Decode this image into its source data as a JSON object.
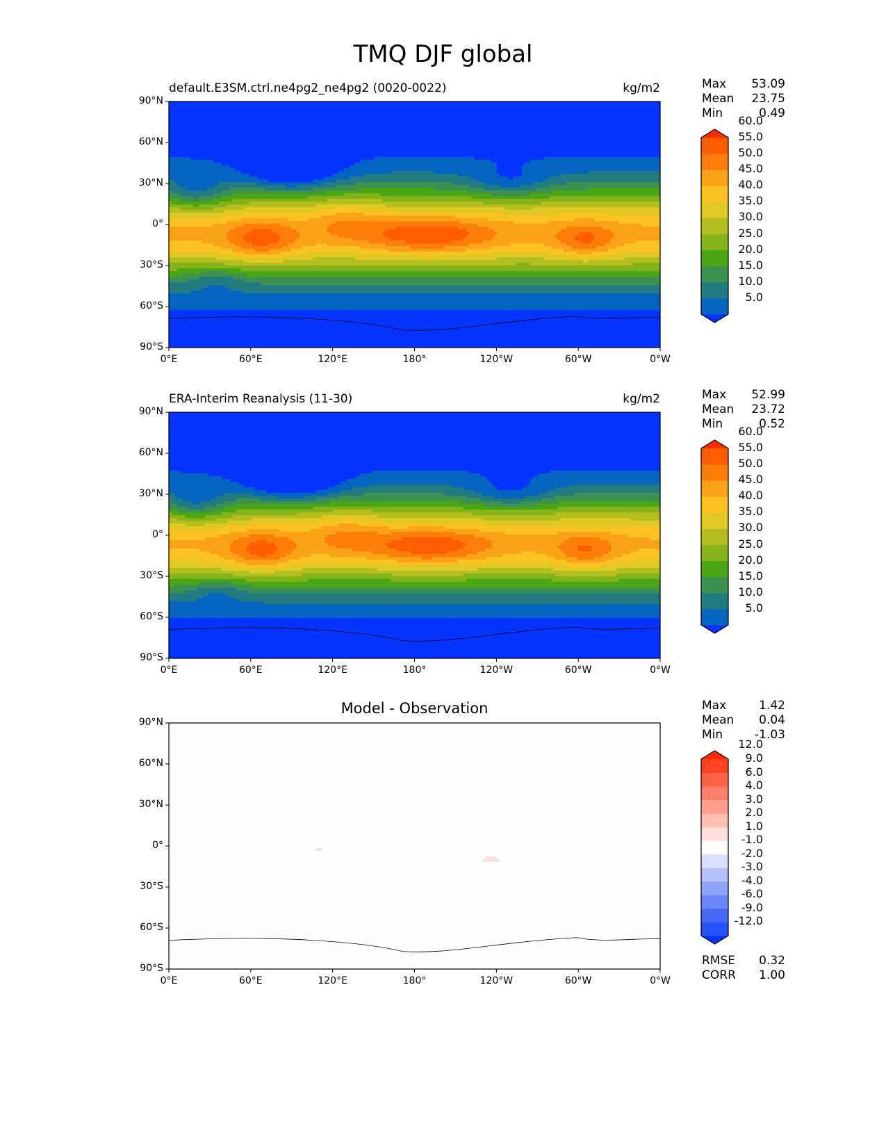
{
  "figure_title": "TMQ DJF global",
  "panels": [
    {
      "left_title": "default.E3SM.ctrl.ne4pg2_ne4pg2 (0020-0022)",
      "right_title": "kg/m2",
      "center_title": "",
      "stats": [
        {
          "label": "Max",
          "value": "53.09"
        },
        {
          "label": "Mean",
          "value": "23.75"
        },
        {
          "label": "Min",
          "value": "0.49"
        }
      ]
    },
    {
      "left_title": "ERA-Interim Reanalysis (11-30)",
      "right_title": "kg/m2",
      "center_title": "",
      "stats": [
        {
          "label": "Max",
          "value": "52.99"
        },
        {
          "label": "Mean",
          "value": "23.72"
        },
        {
          "label": "Min",
          "value": "0.52"
        }
      ]
    },
    {
      "left_title": "",
      "right_title": "",
      "center_title": "Model - Observation",
      "stats": [
        {
          "label": "Max",
          "value": "1.42"
        },
        {
          "label": "Mean",
          "value": "0.04"
        },
        {
          "label": "Min",
          "value": "-1.03"
        }
      ],
      "extra_stats": [
        {
          "label": "RMSE",
          "value": "0.32"
        },
        {
          "label": "CORR",
          "value": "1.00"
        }
      ]
    }
  ],
  "lat_ticks": [
    "90°N",
    "60°N",
    "30°N",
    "0°",
    "30°S",
    "60°S",
    "90°S"
  ],
  "lon_ticks": [
    "0°E",
    "60°E",
    "120°E",
    "180°",
    "120°W",
    "60°W",
    "0°W"
  ],
  "chart_data": {
    "type": "heatmap",
    "title": "TMQ DJF global",
    "variable_units": "kg/m2",
    "xlim": [
      0,
      360
    ],
    "ylim": [
      -90,
      90
    ],
    "main_levels": [
      "5.0",
      "10.0",
      "15.0",
      "20.0",
      "25.0",
      "30.0",
      "35.0",
      "40.0",
      "45.0",
      "50.0",
      "55.0",
      "60.0"
    ],
    "main_colors": [
      "#0433ff",
      "#0565c0",
      "#237b82",
      "#3d9150",
      "#4aa614",
      "#85b31a",
      "#b3bf1e",
      "#e0c924",
      "#fbc223",
      "#fba316",
      "#fd7d0a",
      "#fe5d00",
      "#ff2a00"
    ],
    "diff_levels": [
      "-12.0",
      "-9.0",
      "-6.0",
      "-4.0",
      "-3.0",
      "-2.0",
      "-1.0",
      "1.0",
      "2.0",
      "3.0",
      "4.0",
      "6.0",
      "9.0",
      "12.0"
    ],
    "diff_colors": [
      "#0433ff",
      "#2451f9",
      "#4668f7",
      "#6a86f8",
      "#8ea3f9",
      "#b3c0fb",
      "#d9dffd",
      "#fefefe",
      "#fee0dc",
      "#febfb5",
      "#fe9f90",
      "#fe806b",
      "#fe6247",
      "#fe4324",
      "#ff2a00"
    ]
  }
}
